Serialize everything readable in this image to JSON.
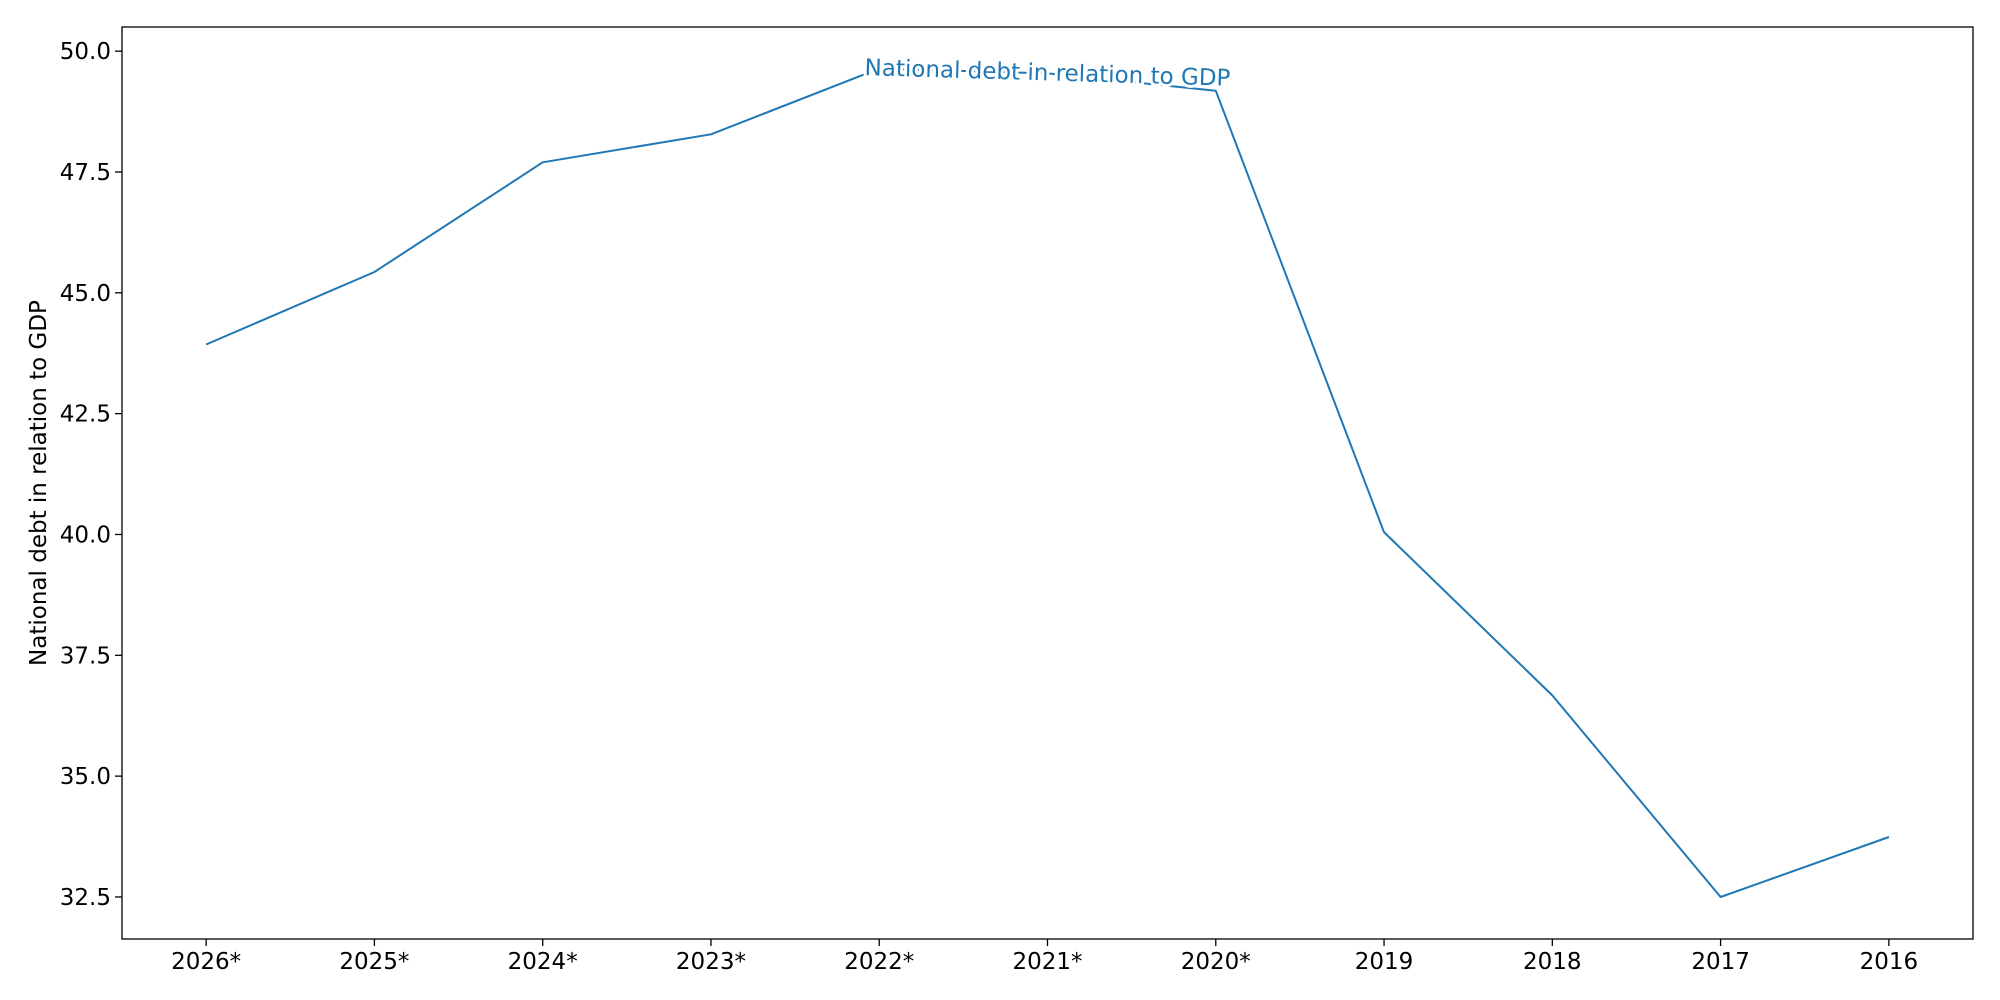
{
  "chart_data": {
    "type": "line",
    "categories": [
      "2026*",
      "2025*",
      "2024*",
      "2023*",
      "2022*",
      "2021*",
      "2020*",
      "2019",
      "2018",
      "2017",
      "2016"
    ],
    "series": [
      {
        "name": "National debt in relation to GDP",
        "values": [
          43.93,
          45.43,
          47.7,
          48.28,
          49.64,
          49.54,
          49.18,
          40.05,
          36.67,
          32.5,
          33.74
        ],
        "color": "#1f77b4"
      }
    ],
    "xlabel": "",
    "ylabel": "National debt in relation to GDP",
    "yticks": [
      "32.5",
      "35.0",
      "37.5",
      "40.0",
      "42.5",
      "45.0",
      "47.5",
      "50.0"
    ],
    "ylim": [
      31.63,
      50.5
    ],
    "grid": false,
    "legend": "inline label on the line"
  }
}
